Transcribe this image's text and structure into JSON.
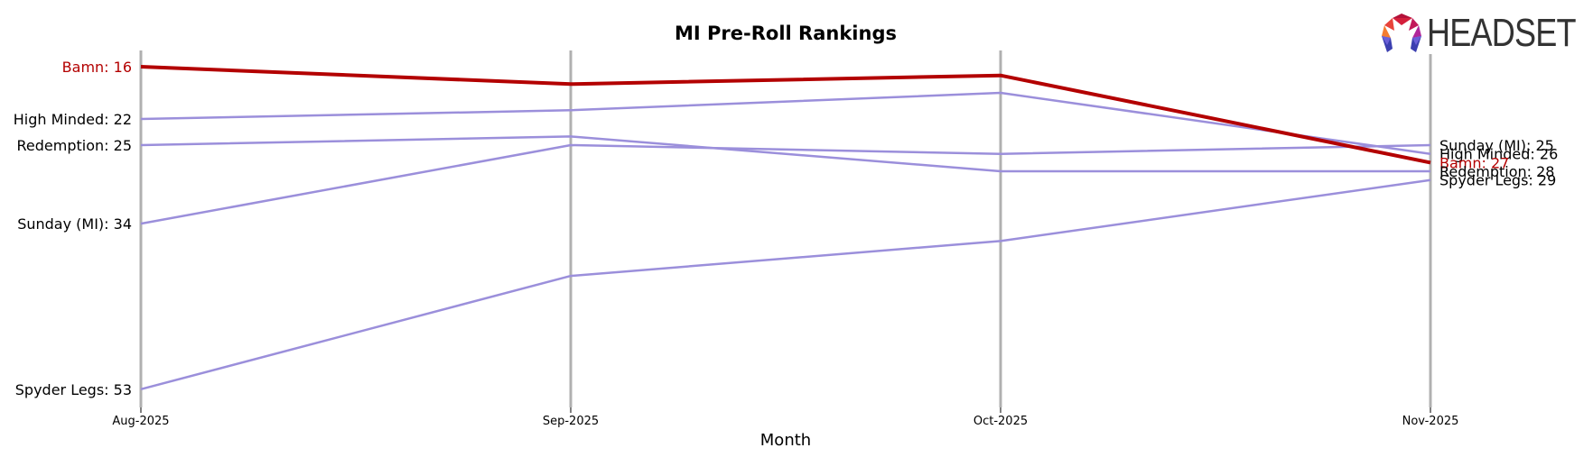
{
  "chart_data": {
    "type": "line",
    "title": "MI Pre-Roll Rankings",
    "xlabel": "Month",
    "ylabel": "",
    "categories": [
      "Aug-2025",
      "Sep-2025",
      "Oct-2025",
      "Nov-2025"
    ],
    "y_inverted": true,
    "ylim": [
      16,
      53
    ],
    "grid": "vertical lines at each month",
    "legend": "inline labels at start and end of each line",
    "series": [
      {
        "name": "Bamn",
        "values": [
          16,
          18,
          17,
          27
        ],
        "color": "#b30000",
        "highlight": true
      },
      {
        "name": "High Minded",
        "values": [
          22,
          21,
          19,
          26
        ],
        "color": "#9b8fdb",
        "highlight": false
      },
      {
        "name": "Redemption",
        "values": [
          25,
          24,
          28,
          28
        ],
        "color": "#9b8fdb",
        "highlight": false
      },
      {
        "name": "Sunday (MI)",
        "values": [
          34,
          25,
          26,
          25
        ],
        "color": "#9b8fdb",
        "highlight": false
      },
      {
        "name": "Spyder Legs",
        "values": [
          53,
          40,
          36,
          29
        ],
        "color": "#9b8fdb",
        "highlight": false
      }
    ]
  },
  "labels": {
    "left": [
      {
        "text": "Bamn: 16",
        "color": "#b30000"
      },
      {
        "text": "High Minded: 22",
        "color": "#000000"
      },
      {
        "text": "Redemption: 25",
        "color": "#000000"
      },
      {
        "text": "Sunday (MI): 34",
        "color": "#000000"
      },
      {
        "text": "Spyder Legs: 53",
        "color": "#000000"
      }
    ],
    "right": [
      {
        "text": "Sunday (MI): 25",
        "color": "#000000"
      },
      {
        "text": "High Minded: 26",
        "color": "#000000"
      },
      {
        "text": "Bamn: 27",
        "color": "#b30000"
      },
      {
        "text": "Redemption: 28",
        "color": "#000000"
      },
      {
        "text": "Spyder Legs: 29",
        "color": "#000000"
      }
    ]
  },
  "logo": {
    "text": "HEADSET"
  },
  "colors": {
    "highlight": "#b30000",
    "other": "#9b8fdb",
    "gridline": "#b0b0b0"
  }
}
